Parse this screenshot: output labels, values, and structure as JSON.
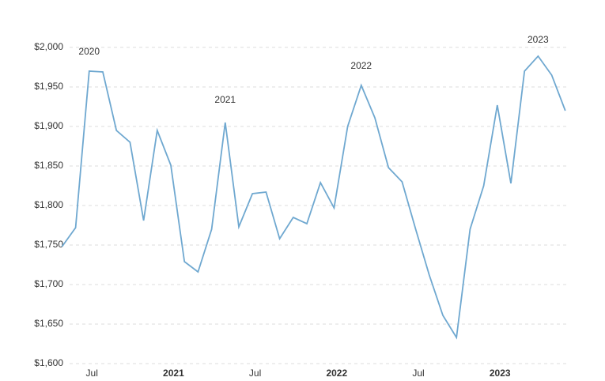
{
  "chart_data": {
    "type": "line",
    "x": [
      "2020-04",
      "2020-05",
      "2020-06",
      "2020-07",
      "2020-08",
      "2020-09",
      "2020-10",
      "2020-11",
      "2020-12",
      "2021-01",
      "2021-02",
      "2021-03",
      "2021-04",
      "2021-05",
      "2021-06",
      "2021-07",
      "2021-08",
      "2021-09",
      "2021-10",
      "2021-11",
      "2021-12",
      "2022-01",
      "2022-02",
      "2022-03",
      "2022-04",
      "2022-05",
      "2022-06",
      "2022-07",
      "2022-08",
      "2022-09",
      "2022-10",
      "2022-11",
      "2022-12",
      "2023-01",
      "2023-02",
      "2023-03",
      "2023-04",
      "2023-05"
    ],
    "series": [
      {
        "color": "#6fa8d0",
        "values": [
          1748,
          1772,
          1970,
          1969,
          1895,
          1880,
          1781,
          1895,
          1851,
          1729,
          1716,
          1770,
          1905,
          1773,
          1815,
          1817,
          1758,
          1785,
          1777,
          1829,
          1797,
          1900,
          1952,
          1911,
          1848,
          1830,
          1770,
          1712,
          1661,
          1633,
          1770,
          1825,
          1927,
          1828,
          1970,
          1989,
          1965,
          1920
        ]
      }
    ],
    "ylim": [
      1600,
      2000
    ],
    "yticks": [
      {
        "value": 1600,
        "label": "$1,600"
      },
      {
        "value": 1650,
        "label": "$1,650"
      },
      {
        "value": 1700,
        "label": "$1,700"
      },
      {
        "value": 1750,
        "label": "$1,750"
      },
      {
        "value": 1800,
        "label": "$1,800"
      },
      {
        "value": 1850,
        "label": "$1,850"
      },
      {
        "value": 1900,
        "label": "$1,900"
      },
      {
        "value": 1950,
        "label": "$1,950"
      },
      {
        "value": 2000,
        "label": "$2,000"
      }
    ],
    "xticks": [
      {
        "value": "2020-07",
        "label": "Jul"
      },
      {
        "value": "2021-01",
        "label": "2021"
      },
      {
        "value": "2021-07",
        "label": "Jul"
      },
      {
        "value": "2022-01",
        "label": "2022"
      },
      {
        "value": "2022-07",
        "label": "Jul"
      },
      {
        "value": "2023-01",
        "label": "2023"
      }
    ],
    "grid": true,
    "annotations": [
      {
        "text": "2020",
        "x": "2020-06",
        "y": 1994
      },
      {
        "text": "2021",
        "x": "2021-04",
        "y": 1933
      },
      {
        "text": "2022",
        "x": "2022-02",
        "y": 1976
      },
      {
        "text": "2023",
        "x": "2023-03",
        "y": 2009
      }
    ]
  }
}
